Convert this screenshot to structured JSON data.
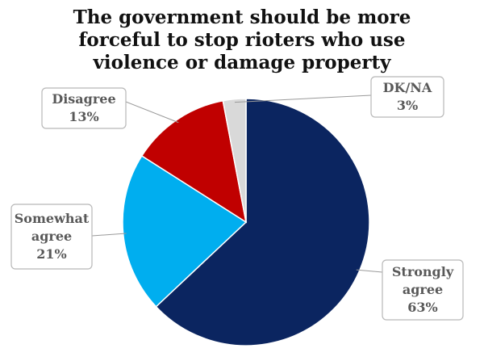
{
  "chart_data": {
    "type": "pie",
    "title_lines": [
      "The government should be more",
      "forceful to stop rioters who use",
      "violence or damage property"
    ],
    "slices": [
      {
        "key": "strongly_agree",
        "label_lines": [
          "Strongly",
          "agree"
        ],
        "value": 63,
        "value_label": "63%",
        "color": "#0b2560"
      },
      {
        "key": "somewhat_agree",
        "label_lines": [
          "Somewhat",
          "agree"
        ],
        "value": 21,
        "value_label": "21%",
        "color": "#00aeef"
      },
      {
        "key": "disagree",
        "label_lines": [
          "Disagree"
        ],
        "value": 13,
        "value_label": "13%",
        "color": "#c00000"
      },
      {
        "key": "dk_na",
        "label_lines": [
          "DK/NA"
        ],
        "value": 3,
        "value_label": "3%",
        "color": "#d9d9d9"
      }
    ],
    "start_angle_deg": 0,
    "direction": "clockwise",
    "legend": "none"
  }
}
